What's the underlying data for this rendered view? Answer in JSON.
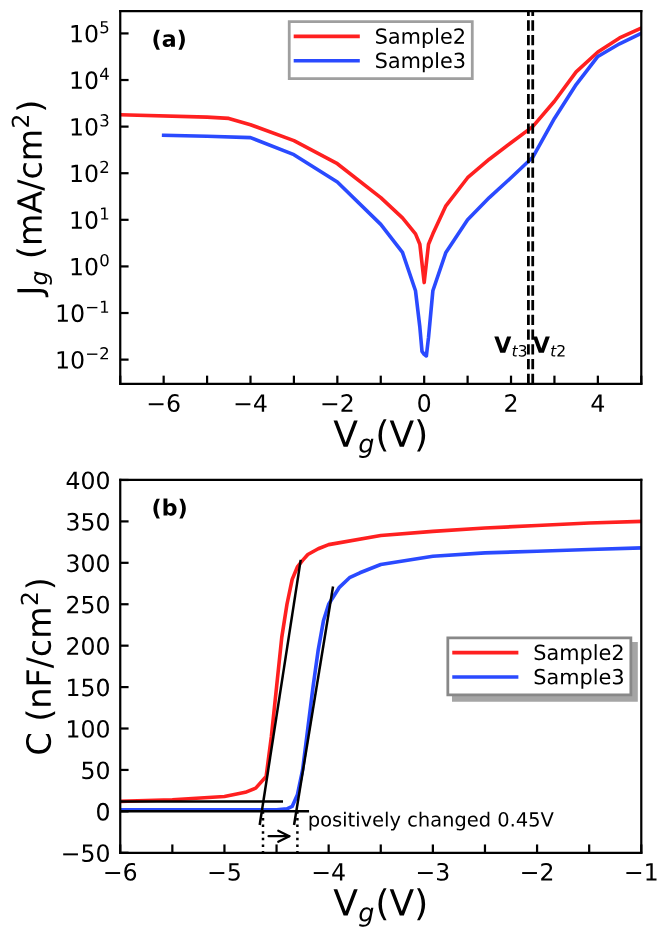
{
  "chart_data": [
    {
      "type": "line",
      "title": "(a)",
      "xlabel": "V$_{g}$(V)",
      "ylabel": "J$_{g}$ (mA/cm$^{2}$)",
      "log": "y",
      "legend": "top",
      "grid": false,
      "xlim": [
        -7,
        5
      ],
      "xticks": [
        {
          "value": -7,
          "label": null
        },
        -6,
        {
          "value": -5,
          "label": null
        },
        -4,
        {
          "value": -3,
          "label": null
        },
        -2,
        {
          "value": -1,
          "label": null
        },
        0,
        {
          "value": 1,
          "label": null
        },
        2,
        {
          "value": 3,
          "label": null
        },
        4,
        {
          "value": 5,
          "label": null
        }
      ],
      "ylim": [
        0.003,
        300000
      ],
      "yticks": [
        {
          "value": 0.01,
          "label": "10$^{−2}$"
        },
        {
          "value": 0.1,
          "label": "10$^{−1}$"
        },
        {
          "value": 1,
          "label": "10$^{0}$"
        },
        {
          "value": 10,
          "label": "10$^{1}$"
        },
        {
          "value": 100,
          "label": "10$^{2}$"
        },
        {
          "value": 1000,
          "label": "10$^{3}$"
        },
        {
          "value": 10000,
          "label": "10$^{4}$"
        },
        {
          "value": 100000,
          "label": "10$^{5}$"
        }
      ],
      "ref_lines": [
        {
          "axis": "x",
          "value": 2.4,
          "label": "V$_{t3}$",
          "color": "#000000",
          "line_style": "dashed"
        },
        {
          "axis": "x",
          "value": 2.5,
          "label": "V$_{t2}$",
          "color": "#000000",
          "line_style": "dashed"
        }
      ],
      "series": [
        {
          "name": "Sample2",
          "color": "#ff2020",
          "x": [
            -7,
            -5,
            -4.5,
            -4,
            -3,
            -2,
            -1,
            -0.5,
            -0.2,
            -0.1,
            0,
            0.1,
            0.2,
            0.5,
            1,
            1.5,
            2,
            2.5,
            3,
            3.5,
            4,
            4.5,
            5
          ],
          "values": [
            1800,
            1600,
            1500,
            1100,
            500,
            160,
            30,
            11,
            5,
            3,
            0.45,
            3,
            5,
            20,
            80,
            200,
            450,
            1000,
            3500,
            15000,
            40000,
            80000,
            130000
          ]
        },
        {
          "name": "Sample3",
          "color": "#2a4aff",
          "x": [
            -6,
            -5,
            -4,
            -3,
            -2,
            -1,
            -0.5,
            -0.2,
            -0.1,
            -0.05,
            0,
            0.05,
            0.1,
            0.2,
            0.5,
            1,
            1.5,
            2,
            2.5,
            3,
            3.5,
            4,
            4.5,
            5
          ],
          "values": [
            650,
            620,
            580,
            250,
            65,
            8,
            2,
            0.3,
            0.05,
            0.015,
            0.013,
            0.012,
            0.03,
            0.3,
            2,
            10,
            30,
            80,
            220,
            1500,
            8000,
            32000,
            60000,
            100000
          ]
        }
      ]
    },
    {
      "type": "line",
      "title": "(b)",
      "xlabel": "V$_{g}$(V)",
      "ylabel": "C (nF/cm$^{2}$)",
      "legend": "right",
      "grid": false,
      "xlim": [
        -6,
        -1
      ],
      "xticks": [
        -6,
        {
          "value": -5.5,
          "label": null
        },
        -5,
        {
          "value": -4.5,
          "label": null
        },
        -4,
        {
          "value": -3.5,
          "label": null
        },
        -3,
        {
          "value": -2.5,
          "label": null
        },
        -2,
        {
          "value": -1.5,
          "label": null
        },
        -1
      ],
      "ylim": [
        -50,
        400
      ],
      "yticks": [
        -50,
        0,
        50,
        100,
        150,
        200,
        250,
        300,
        350,
        400
      ],
      "annotations": [
        "positively changed 0.45V"
      ],
      "series": [
        {
          "name": "Sample2",
          "color": "#ff2020",
          "x": [
            -6,
            -5.5,
            -5,
            -4.8,
            -4.7,
            -4.6,
            -4.55,
            -4.5,
            -4.45,
            -4.4,
            -4.35,
            -4.3,
            -4.25,
            -4.2,
            -4.1,
            -4,
            -3.5,
            -3,
            -2.5,
            -2,
            -1.5,
            -1
          ],
          "values": [
            12,
            14,
            18,
            23,
            28,
            42,
            90,
            150,
            210,
            250,
            280,
            295,
            303,
            310,
            317,
            322,
            333,
            338,
            342,
            345,
            348,
            350
          ]
        },
        {
          "name": "Sample3",
          "color": "#2a4aff",
          "x": [
            -6,
            -5,
            -4.5,
            -4.4,
            -4.35,
            -4.3,
            -4.25,
            -4.2,
            -4.15,
            -4.1,
            -4.05,
            -4,
            -3.9,
            -3.8,
            -3.7,
            -3.5,
            -3,
            -2.5,
            -2,
            -1.5,
            -1
          ],
          "values": [
            2,
            2,
            2,
            3,
            6,
            20,
            50,
            100,
            150,
            195,
            230,
            250,
            270,
            282,
            288,
            298,
            308,
            312,
            314,
            316,
            318
          ]
        },
        {
          "color": "#000000",
          "x": [
            -4.66,
            -4.27
          ],
          "values": [
            -15,
            302
          ]
        },
        {
          "color": "#000000",
          "x": [
            -4.33,
            -3.96
          ],
          "values": [
            -15,
            270
          ]
        },
        {
          "color": "#000000",
          "x": [
            -6,
            -4.45
          ],
          "values": [
            12,
            12
          ]
        },
        {
          "color": "#000000",
          "x": [
            -6,
            -4.2
          ],
          "values": [
            0,
            0
          ]
        },
        {
          "color": "#000000",
          "line_style": "dotted",
          "x": [
            -4.63,
            -4.63
          ],
          "values": [
            0,
            -50
          ]
        },
        {
          "color": "#000000",
          "line_style": "dotted",
          "x": [
            -4.3,
            -4.3
          ],
          "values": [
            0,
            -50
          ]
        }
      ]
    }
  ]
}
